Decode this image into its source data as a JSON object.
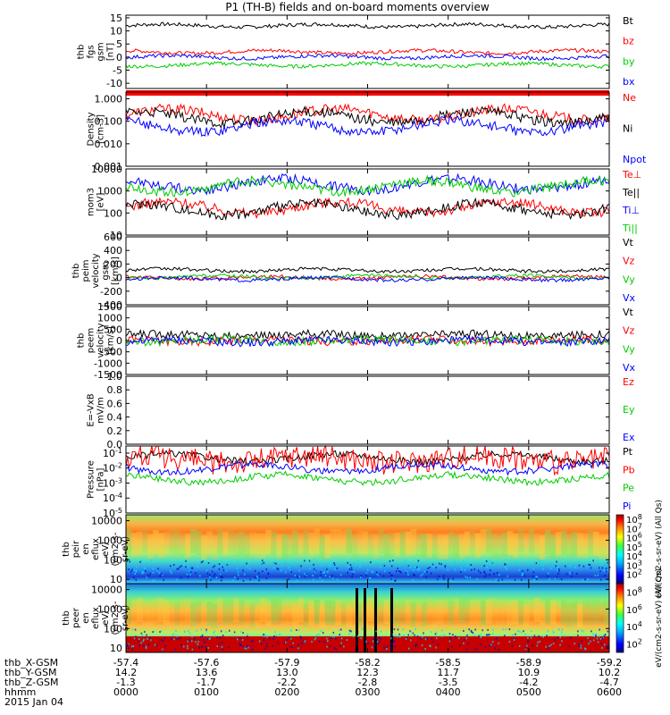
{
  "chart_data": {
    "type": "line",
    "title": "P1 (TH-B) fields and on-board moments overview",
    "time_axis": {
      "rows": [
        {
          "label": "thb_X-GSM",
          "values": [
            "-57.4",
            "-57.6",
            "-57.9",
            "-58.2",
            "-58.5",
            "-58.9",
            "-59.2"
          ]
        },
        {
          "label": "thb_Y-GSM",
          "values": [
            "14.2",
            "13.6",
            "13.0",
            "12.3",
            "11.7",
            "10.9",
            "10.2"
          ]
        },
        {
          "label": "thb_Z-GSM",
          "values": [
            "-1.3",
            "-1.7",
            "-2.2",
            "-2.8",
            "-3.5",
            "-4.2",
            "-4.7"
          ]
        },
        {
          "label": "hhmm",
          "values": [
            "0000",
            "0100",
            "0200",
            "0300",
            "0400",
            "0500",
            "0600"
          ]
        }
      ],
      "date": "2015 Jan 04",
      "xlim_hours": [
        0,
        6
      ]
    },
    "panels": [
      {
        "id": "fgs",
        "ylabel": [
          "thb",
          "fgs",
          "gsm",
          "[nT]"
        ],
        "ylim": [
          -12,
          16
        ],
        "scale": "linear",
        "ticks": [
          "15",
          "10",
          "5",
          "0",
          "-5",
          "-10"
        ],
        "tick_values": [
          15,
          10,
          5,
          0,
          -5,
          -10
        ],
        "legend": [
          {
            "name": "Bt",
            "color": "#000000"
          },
          {
            "name": "bz",
            "color": "#ff0000"
          },
          {
            "name": "by",
            "color": "#00cc00"
          },
          {
            "name": "bx",
            "color": "#0000ff"
          }
        ],
        "series_levels": [
          12,
          2,
          -3,
          0
        ]
      },
      {
        "id": "density",
        "ylabel": [
          "Density",
          "[cm-3]"
        ],
        "ylim": [
          0.001,
          2
        ],
        "scale": "log",
        "ticks": [
          "1.000",
          "0.100",
          "0.010",
          "0.001"
        ],
        "tick_values": [
          1,
          0.1,
          0.01,
          0.001
        ],
        "legend": [
          {
            "name": "Ne",
            "color": "#ff0000"
          },
          {
            "name": "Ni",
            "color": "#000000"
          },
          {
            "name": "Npot",
            "color": "#0000ff"
          }
        ],
        "series_levels": [
          0.2,
          0.15,
          0.06
        ]
      },
      {
        "id": "temp",
        "ylabel": [
          "mom3",
          "[eV]"
        ],
        "ylim": [
          10,
          10000
        ],
        "scale": "log",
        "ticks": [
          "10000",
          "1000",
          "100",
          "10"
        ],
        "tick_values": [
          10000,
          1000,
          100,
          10
        ],
        "legend": [
          {
            "name": "Te⊥",
            "color": "#ff0000"
          },
          {
            "name": "Te||",
            "color": "#000000"
          },
          {
            "name": "Ti⊥",
            "color": "#0000ff"
          },
          {
            "name": "Ti||",
            "color": "#00cc00"
          }
        ],
        "series_levels": [
          180,
          150,
          2000,
          1600
        ]
      },
      {
        "id": "peim",
        "ylabel": [
          "thb",
          "peim",
          "velocity",
          "gsm",
          "[km/s]"
        ],
        "ylim": [
          -400,
          600
        ],
        "scale": "linear",
        "ticks": [
          "600",
          "400",
          "200",
          "0",
          "-200",
          "-400"
        ],
        "tick_values": [
          600,
          400,
          200,
          0,
          -200,
          -400
        ],
        "legend": [
          {
            "name": "Vt",
            "color": "#000000"
          },
          {
            "name": "Vz",
            "color": "#ff0000"
          },
          {
            "name": "Vy",
            "color": "#00cc00"
          },
          {
            "name": "Vx",
            "color": "#0000ff"
          }
        ],
        "series_levels": [
          80,
          0,
          10,
          -20
        ]
      },
      {
        "id": "peem",
        "ylabel": [
          "thb",
          "peem",
          "velocity",
          "[km/s]"
        ],
        "ylim": [
          -1500,
          1500
        ],
        "scale": "linear",
        "ticks": [
          "1500",
          "1000",
          "500",
          "0",
          "-500",
          "-1000",
          "-1500"
        ],
        "tick_values": [
          1500,
          1000,
          500,
          0,
          -500,
          -1000,
          -1500
        ],
        "legend": [
          {
            "name": "Vt",
            "color": "#000000"
          },
          {
            "name": "Vz",
            "color": "#ff0000"
          },
          {
            "name": "Vy",
            "color": "#00cc00"
          },
          {
            "name": "Vx",
            "color": "#0000ff"
          }
        ],
        "series_levels": [
          150,
          0,
          0,
          -30
        ]
      },
      {
        "id": "efield",
        "ylabel": [
          "E=-VxB",
          "mV/m"
        ],
        "ylim": [
          0,
          1
        ],
        "scale": "linear",
        "ticks": [
          "1.0",
          "0.8",
          "0.6",
          "0.4",
          "0.2",
          "0.0"
        ],
        "tick_values": [
          1,
          0.8,
          0.6,
          0.4,
          0.2,
          0
        ],
        "legend": [
          {
            "name": "Ez",
            "color": "#ff0000"
          },
          {
            "name": "Ey",
            "color": "#00cc00"
          },
          {
            "name": "Ex",
            "color": "#0000ff"
          }
        ],
        "series_levels": []
      },
      {
        "id": "pressure",
        "ylabel": [
          "Pressure",
          "[nPa]"
        ],
        "ylim": [
          1e-05,
          0.3
        ],
        "scale": "log",
        "ticks": [
          "10^-1",
          "10^-2",
          "10^-3",
          "10^-4",
          "10^-5"
        ],
        "tick_values": [
          0.1,
          0.01,
          0.001,
          0.0001,
          1e-05
        ],
        "legend": [
          {
            "name": "Pt",
            "color": "#000000"
          },
          {
            "name": "Pb",
            "color": "#ff0000"
          },
          {
            "name": "Pe",
            "color": "#00cc00"
          },
          {
            "name": "Pi",
            "color": "#0000ff"
          }
        ],
        "series_levels": [
          0.05,
          0.04,
          0.002,
          0.01
        ]
      },
      {
        "id": "peir",
        "type": "heatmap",
        "ylabel": [
          "thb",
          "peir",
          "en",
          "eflux",
          "eV/",
          "(cm2-s-",
          "sr-eV)"
        ],
        "ylim": [
          6,
          20000
        ],
        "scale": "log",
        "ticks": [
          "10000",
          "1000",
          "100",
          "10"
        ],
        "tick_values": [
          10000,
          1000,
          100,
          10
        ]
      },
      {
        "id": "peer",
        "type": "heatmap",
        "ylabel": [
          "thb",
          "peer",
          "en",
          "eflux",
          "eV/",
          "(cm2-s-",
          "sr-eV)"
        ],
        "ylim": [
          6,
          20000
        ],
        "scale": "log",
        "ticks": [
          "10000",
          "1000",
          "100",
          "10"
        ],
        "tick_values": [
          10000,
          1000,
          100,
          10
        ]
      }
    ],
    "colorbars": [
      {
        "label": "eV/(cm2-s-sr-eV) (All Qs)",
        "ticks": [
          "10^8",
          "10^7",
          "10^6",
          "10^5",
          "10^4",
          "10^3",
          "10^2"
        ],
        "tick_exponents": [
          8,
          7,
          6,
          5,
          4,
          3,
          2
        ],
        "range_exponents": [
          1,
          8.5
        ]
      },
      {
        "label": "eV/(cm2-s-sr-eV) (All Qs)",
        "ticks": [
          "10^8",
          "10^6",
          "10^4",
          "10^2"
        ],
        "tick_exponents": [
          8,
          6,
          4,
          2
        ],
        "range_exponents": [
          1,
          9
        ]
      }
    ],
    "colors": {
      "bar_red": "#ff0000",
      "axis": "#000000"
    }
  }
}
